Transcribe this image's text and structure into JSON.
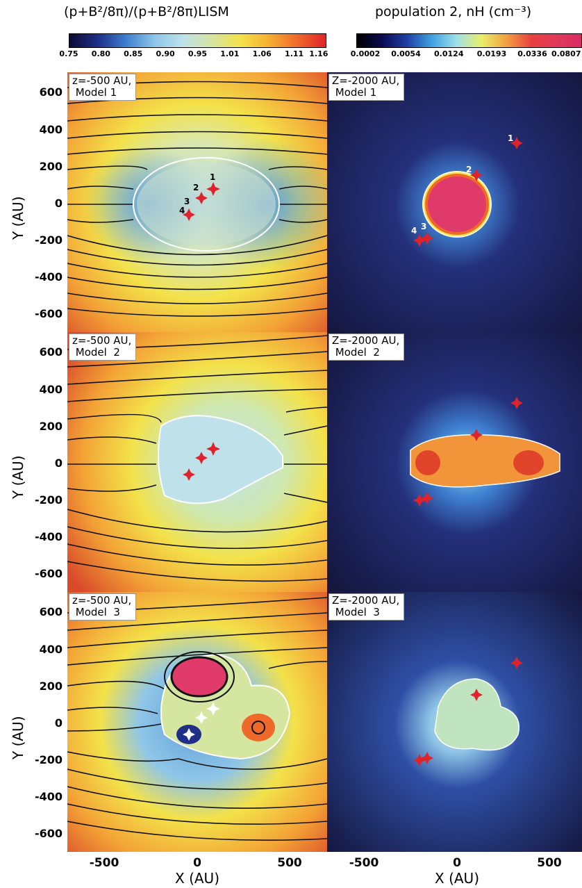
{
  "titles": {
    "left": "(p+B²/8π)/(p+B²/8π)LISM",
    "right": "population 2, nH (cm⁻³)"
  },
  "colorbar_left": {
    "ticks": [
      "0.75",
      "0.80",
      "0.85",
      "0.90",
      "0.95",
      "1.01",
      "1.06",
      "1.11",
      "1.16"
    ]
  },
  "colorbar_right": {
    "ticks": [
      "0.0002",
      "0.0054",
      "0.0124",
      "0.0193",
      "0.0336",
      "0.0807"
    ]
  },
  "panels": {
    "p1": {
      "label": "z=-500 AU,\n Model 1"
    },
    "p2": {
      "label": "Z=-2000 AU,\n Model 1"
    },
    "p3": {
      "label": "z=-500 AU,\n Model  2"
    },
    "p4": {
      "label": "Z=-2000 AU,\n Model  2"
    },
    "p5": {
      "label": "z=-500 AU,\n Model  3"
    },
    "p6": {
      "label": "Z=-2000 AU,\n Model  3"
    }
  },
  "markers": [
    "1",
    "2",
    "3",
    "4"
  ],
  "axes": {
    "y_label": "Y (AU)",
    "x_label": "X (AU)",
    "y_ticks": [
      "600",
      "400",
      "200",
      "0",
      "-200",
      "-400",
      "-600"
    ],
    "x_ticks": [
      "-500",
      "0",
      "500"
    ]
  },
  "colors": {
    "boundary": "#ffffff",
    "marker": "#e0232a",
    "streamline": "#111111"
  }
}
